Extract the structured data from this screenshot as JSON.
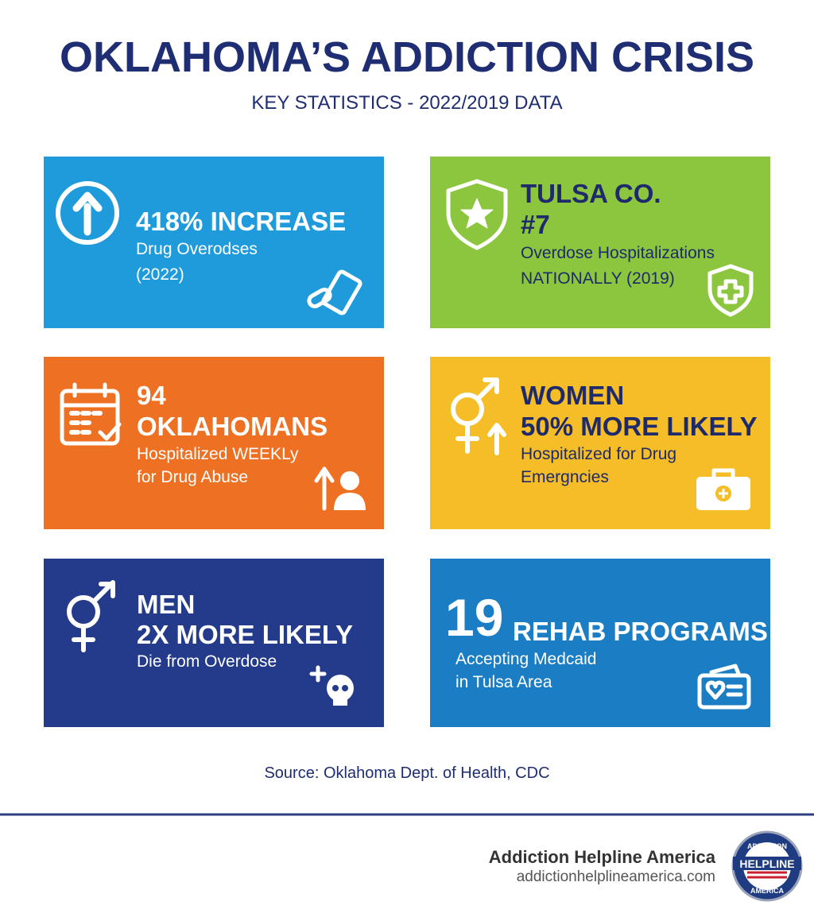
{
  "header": {
    "title": "OKLAHOMA’S ADDICTION CRISIS",
    "subtitle": "KEY STATISTICS - 2022/2019 DATA"
  },
  "cards": [
    {
      "headline": [
        "418% INCREASE"
      ],
      "details": [
        "Drug Overodses",
        "(2022)"
      ]
    },
    {
      "headline": [
        "TULSA CO.",
        "#7"
      ],
      "details": [
        "Overdose Hospitalizations",
        "NATIONALLY (2019)"
      ]
    },
    {
      "headline": [
        "94",
        "OKLAHOMANS"
      ],
      "details": [
        "Hospitalized WEEKLy",
        "for Drug Abuse"
      ]
    },
    {
      "headline": [
        "WOMEN",
        "50% MORE LIKELY"
      ],
      "details": [
        "Hospitalized for Drug",
        "Emergncies"
      ]
    },
    {
      "headline": [
        "MEN",
        "2X MORE LIKELY"
      ],
      "details": [
        "Die from Overdose"
      ]
    },
    {
      "headline": [
        "19",
        "REHAB PROGRAMS"
      ],
      "details": [
        "Accepting Medcaid",
        "in Tulsa Area"
      ]
    }
  ],
  "source": "Source: Oklahoma Dept. of Health, CDC",
  "footer": {
    "brand": "Addiction Helpline America",
    "url": "addictionhelplineamerica.com",
    "logo": {
      "top": "ADDICTION",
      "middle": "HELPLINE",
      "bottom": "AMERICA"
    }
  }
}
